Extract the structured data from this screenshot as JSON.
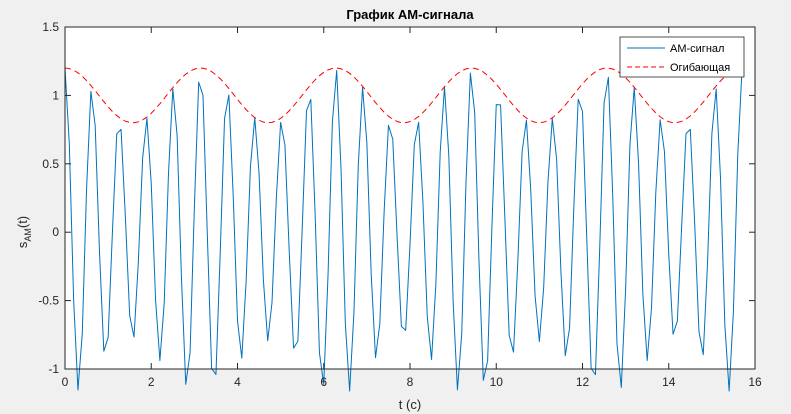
{
  "chart_data": {
    "type": "line",
    "title": "График АМ-сигнала",
    "xlabel": "t (с)",
    "ylabel_main": "s",
    "ylabel_sub": "AM",
    "ylabel_tail": "(t)",
    "xlim": [
      0,
      16
    ],
    "ylim": [
      -1,
      1.5
    ],
    "xticks": [
      0,
      2,
      4,
      6,
      8,
      10,
      12,
      14,
      16
    ],
    "xtick_labels": [
      "0",
      "2",
      "4",
      "6",
      "8",
      "10",
      "12",
      "14",
      "16"
    ],
    "yticks": [
      -1,
      -0.5,
      0,
      0.5,
      1,
      1.5
    ],
    "ytick_labels": [
      "-1",
      "-0.5",
      "0",
      "0.5",
      "1",
      "1.5"
    ],
    "grid": false,
    "legend_position": "top-right",
    "model": {
      "carrier_amplitude": 1,
      "modulation_index": 0.2,
      "modulating_frequency_rad": 2,
      "carrier_frequency_rad": 10,
      "t_start": 0,
      "t_end": 15.7,
      "t_step": 0.1
    },
    "series": [
      {
        "name": "АМ-сигнал",
        "color": "#0072bd",
        "style": "solid",
        "expr": "(1 + 0.2*cos(2t))*cos(10t)"
      },
      {
        "name": "Огибающая",
        "color": "#ff0000",
        "style": "dashed",
        "expr": "1 + 0.2*cos(2t)"
      }
    ]
  }
}
